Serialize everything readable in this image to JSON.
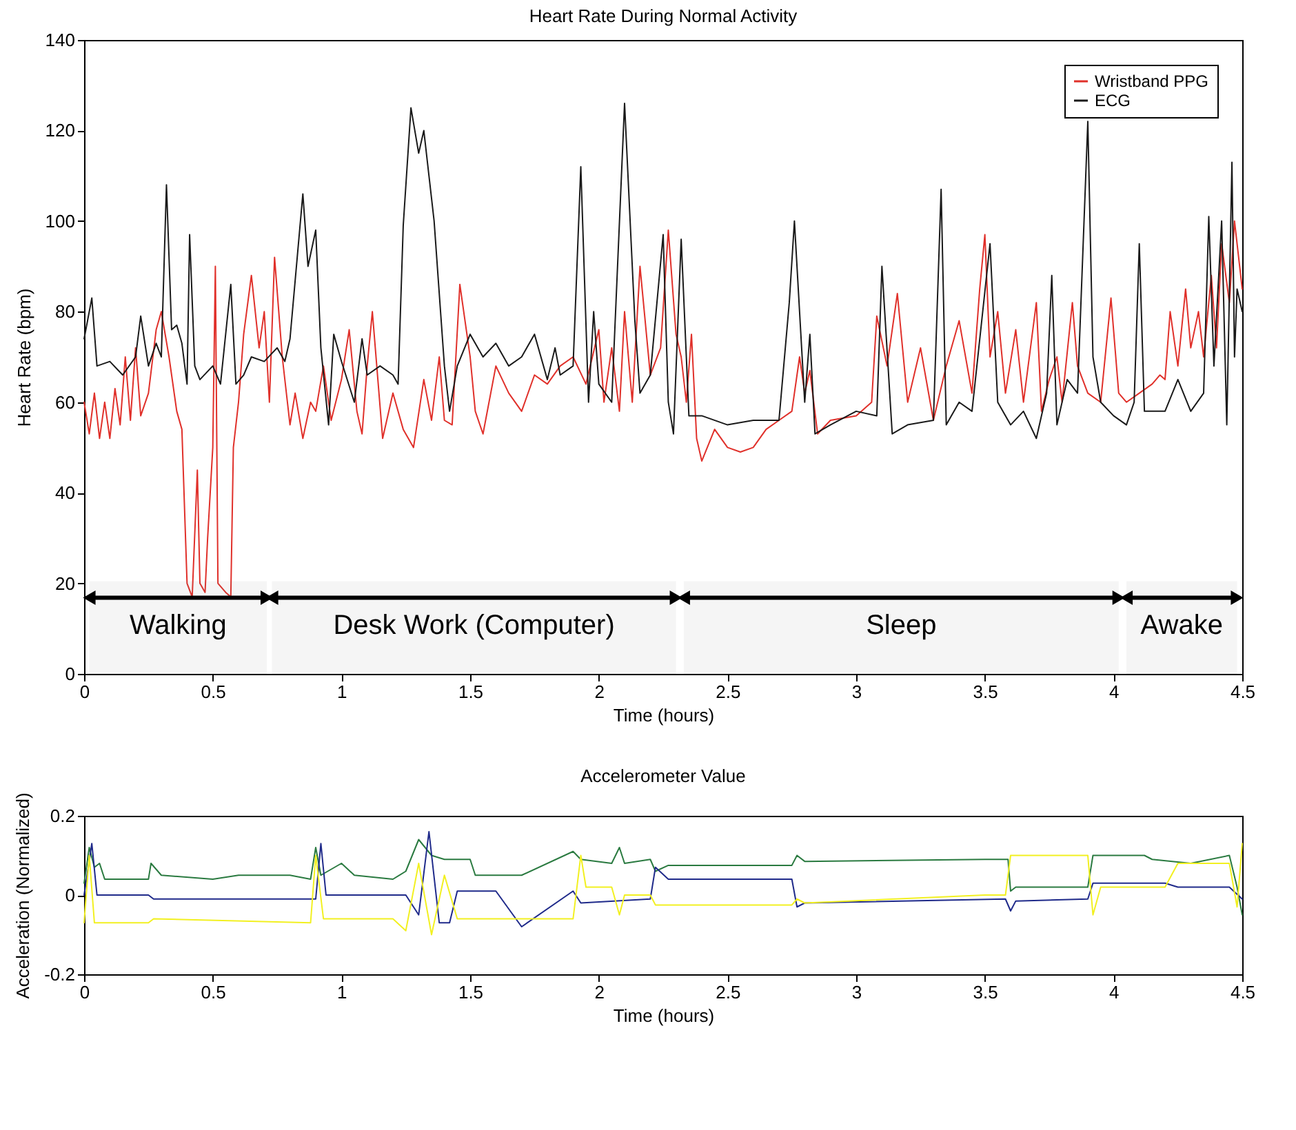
{
  "chart_data": [
    {
      "type": "line",
      "title": "Heart Rate During Normal Activity",
      "xlabel": "Time (hours)",
      "ylabel": "Heart Rate (bpm)",
      "xlim": [
        0,
        4.5
      ],
      "xticks": [
        0,
        0.5,
        1,
        1.5,
        2,
        2.5,
        3,
        3.5,
        4,
        4.5
      ],
      "ylim": [
        0,
        140
      ],
      "yticks": [
        0,
        20,
        40,
        60,
        80,
        100,
        120,
        140
      ],
      "legend": "top right",
      "bands": [
        {
          "axis": "x",
          "from": 0.02,
          "to": 0.71,
          "label": "Walking"
        },
        {
          "axis": "x",
          "from": 0.73,
          "to": 2.3,
          "label": "Desk Work (Computer)"
        },
        {
          "axis": "x",
          "from": 2.33,
          "to": 4.02,
          "label": "Sleep"
        },
        {
          "axis": "x",
          "from": 4.05,
          "to": 4.48,
          "label": "Awake"
        }
      ],
      "series": [
        {
          "name": "Wristband PPG",
          "color": "#e0302a",
          "x": [
            0,
            0.02,
            0.04,
            0.06,
            0.08,
            0.1,
            0.12,
            0.14,
            0.16,
            0.18,
            0.2,
            0.22,
            0.25,
            0.28,
            0.3,
            0.33,
            0.36,
            0.38,
            0.4,
            0.42,
            0.44,
            0.45,
            0.47,
            0.48,
            0.5,
            0.51,
            0.52,
            0.55,
            0.57,
            0.58,
            0.6,
            0.62,
            0.65,
            0.68,
            0.7,
            0.72,
            0.74,
            0.77,
            0.8,
            0.82,
            0.85,
            0.88,
            0.9,
            0.93,
            0.96,
            1.0,
            1.03,
            1.06,
            1.08,
            1.1,
            1.12,
            1.16,
            1.2,
            1.24,
            1.28,
            1.32,
            1.35,
            1.38,
            1.4,
            1.43,
            1.46,
            1.5,
            1.52,
            1.55,
            1.6,
            1.65,
            1.7,
            1.75,
            1.8,
            1.85,
            1.9,
            1.95,
            2.0,
            2.02,
            2.05,
            2.08,
            2.1,
            2.13,
            2.16,
            2.2,
            2.24,
            2.27,
            2.3,
            2.32,
            2.34,
            2.36,
            2.38,
            2.4,
            2.45,
            2.5,
            2.55,
            2.6,
            2.65,
            2.7,
            2.75,
            2.78,
            2.8,
            2.82,
            2.85,
            2.9,
            3.0,
            3.06,
            3.08,
            3.12,
            3.16,
            3.2,
            3.25,
            3.3,
            3.35,
            3.4,
            3.45,
            3.48,
            3.5,
            3.52,
            3.55,
            3.58,
            3.62,
            3.65,
            3.7,
            3.72,
            3.75,
            3.78,
            3.8,
            3.84,
            3.86,
            3.9,
            3.95,
            3.99,
            4.02,
            4.05,
            4.1,
            4.15,
            4.18,
            4.2,
            4.22,
            4.25,
            4.28,
            4.3,
            4.33,
            4.35,
            4.38,
            4.4,
            4.42,
            4.45,
            4.47,
            4.5
          ],
          "values": [
            60,
            53,
            62,
            52,
            60,
            52,
            63,
            55,
            70,
            56,
            72,
            57,
            62,
            76,
            80,
            70,
            58,
            54,
            20,
            17,
            45,
            20,
            18,
            30,
            50,
            90,
            20,
            18,
            17,
            50,
            60,
            75,
            88,
            72,
            80,
            60,
            92,
            70,
            55,
            62,
            52,
            60,
            58,
            68,
            56,
            65,
            76,
            58,
            53,
            68,
            80,
            52,
            62,
            54,
            50,
            65,
            56,
            70,
            56,
            55,
            86,
            70,
            58,
            53,
            68,
            62,
            58,
            66,
            64,
            68,
            70,
            64,
            76,
            60,
            72,
            58,
            80,
            60,
            90,
            66,
            72,
            98,
            75,
            70,
            60,
            75,
            52,
            47,
            54,
            50,
            49,
            50,
            54,
            56,
            58,
            70,
            62,
            67,
            53,
            56,
            57,
            60,
            79,
            68,
            84,
            60,
            72,
            56,
            68,
            78,
            62,
            85,
            97,
            70,
            80,
            62,
            76,
            60,
            82,
            58,
            65,
            70,
            60,
            82,
            68,
            62,
            60,
            83,
            62,
            60,
            62,
            64,
            66,
            65,
            80,
            68,
            85,
            72,
            80,
            70,
            88,
            72,
            95,
            82,
            100,
            85
          ]
        },
        {
          "name": "ECG",
          "color": "#1a1a1a",
          "x": [
            0,
            0.03,
            0.05,
            0.1,
            0.15,
            0.2,
            0.22,
            0.25,
            0.28,
            0.3,
            0.32,
            0.34,
            0.36,
            0.38,
            0.4,
            0.41,
            0.43,
            0.45,
            0.5,
            0.53,
            0.57,
            0.59,
            0.62,
            0.65,
            0.7,
            0.75,
            0.78,
            0.8,
            0.85,
            0.87,
            0.9,
            0.92,
            0.95,
            0.97,
            1.0,
            1.05,
            1.08,
            1.1,
            1.15,
            1.2,
            1.22,
            1.24,
            1.27,
            1.3,
            1.32,
            1.34,
            1.36,
            1.4,
            1.42,
            1.45,
            1.5,
            1.55,
            1.6,
            1.65,
            1.7,
            1.75,
            1.8,
            1.83,
            1.85,
            1.9,
            1.93,
            1.96,
            1.98,
            2.0,
            2.05,
            2.1,
            2.14,
            2.16,
            2.2,
            2.25,
            2.27,
            2.29,
            2.32,
            2.35,
            2.4,
            2.5,
            2.6,
            2.7,
            2.74,
            2.76,
            2.8,
            2.82,
            2.84,
            2.9,
            3.0,
            3.08,
            3.1,
            3.14,
            3.2,
            3.3,
            3.33,
            3.35,
            3.4,
            3.45,
            3.52,
            3.55,
            3.6,
            3.65,
            3.7,
            3.74,
            3.76,
            3.78,
            3.82,
            3.86,
            3.9,
            3.92,
            3.95,
            4.0,
            4.05,
            4.08,
            4.1,
            4.12,
            4.2,
            4.25,
            4.3,
            4.35,
            4.37,
            4.39,
            4.42,
            4.44,
            4.46,
            4.47,
            4.48,
            4.5
          ],
          "values": [
            74,
            83,
            68,
            69,
            66,
            70,
            79,
            68,
            73,
            70,
            108,
            76,
            77,
            73,
            64,
            97,
            68,
            65,
            68,
            64,
            86,
            64,
            66,
            70,
            69,
            72,
            69,
            74,
            106,
            90,
            98,
            72,
            55,
            75,
            69,
            60,
            74,
            66,
            68,
            66,
            64,
            99,
            125,
            115,
            120,
            110,
            100,
            68,
            58,
            68,
            75,
            70,
            73,
            68,
            70,
            75,
            65,
            72,
            66,
            68,
            112,
            60,
            80,
            64,
            60,
            126,
            78,
            62,
            66,
            97,
            60,
            53,
            96,
            57,
            57,
            55,
            56,
            56,
            82,
            100,
            60,
            75,
            53,
            55,
            58,
            57,
            90,
            53,
            55,
            56,
            107,
            55,
            60,
            58,
            95,
            60,
            55,
            58,
            52,
            62,
            88,
            55,
            65,
            62,
            122,
            70,
            60,
            57,
            55,
            60,
            95,
            58,
            58,
            65,
            58,
            62,
            101,
            68,
            100,
            55,
            113,
            70,
            85,
            80
          ]
        }
      ]
    },
    {
      "type": "line",
      "title": "Accelerometer Value",
      "xlabel": "Time (hours)",
      "ylabel": "Acceleration (Normalized)",
      "xlim": [
        0,
        4.5
      ],
      "xticks": [
        0,
        0.5,
        1,
        1.5,
        2,
        2.5,
        3,
        3.5,
        4,
        4.5
      ],
      "ylim": [
        -0.2,
        0.2
      ],
      "yticks": [
        -0.2,
        0,
        0.2
      ],
      "series": [
        {
          "color": "#2a7a40",
          "x": [
            0,
            0.02,
            0.04,
            0.06,
            0.08,
            0.25,
            0.26,
            0.3,
            0.5,
            0.6,
            0.8,
            0.88,
            0.9,
            0.92,
            1.0,
            1.05,
            1.2,
            1.25,
            1.3,
            1.35,
            1.4,
            1.5,
            1.52,
            1.7,
            1.9,
            1.93,
            2.05,
            2.08,
            2.1,
            2.2,
            2.22,
            2.27,
            2.75,
            2.77,
            2.8,
            3.5,
            3.59,
            3.6,
            3.62,
            3.9,
            3.92,
            4.12,
            4.15,
            4.3,
            4.45,
            4.48,
            4.5
          ],
          "values": [
            0.03,
            0.12,
            0.07,
            0.08,
            0.04,
            0.04,
            0.08,
            0.05,
            0.04,
            0.05,
            0.05,
            0.04,
            0.12,
            0.05,
            0.08,
            0.05,
            0.04,
            0.06,
            0.14,
            0.1,
            0.09,
            0.09,
            0.05,
            0.05,
            0.11,
            0.09,
            0.08,
            0.12,
            0.08,
            0.09,
            0.06,
            0.075,
            0.075,
            0.1,
            0.085,
            0.09,
            0.09,
            0.01,
            0.02,
            0.02,
            0.1,
            0.1,
            0.09,
            0.08,
            0.1,
            0.02,
            -0.05
          ]
        },
        {
          "color": "#1f2a8a",
          "x": [
            0,
            0.03,
            0.05,
            0.25,
            0.27,
            0.9,
            0.92,
            0.94,
            1.25,
            1.3,
            1.34,
            1.38,
            1.42,
            1.45,
            1.6,
            1.7,
            1.9,
            1.93,
            2.2,
            2.22,
            2.27,
            2.75,
            2.77,
            2.8,
            3.58,
            3.6,
            3.62,
            3.9,
            3.92,
            4.2,
            4.25,
            4.45,
            4.5
          ],
          "values": [
            0.0,
            0.13,
            0.0,
            0.0,
            -0.01,
            -0.01,
            0.13,
            0.0,
            0.0,
            -0.05,
            0.16,
            -0.07,
            -0.07,
            0.01,
            0.01,
            -0.08,
            0.01,
            -0.02,
            -0.01,
            0.07,
            0.04,
            0.04,
            -0.03,
            -0.02,
            -0.01,
            -0.04,
            -0.015,
            -0.01,
            0.03,
            0.03,
            0.02,
            0.02,
            -0.01
          ]
        },
        {
          "color": "#f2f020",
          "x": [
            0,
            0.02,
            0.04,
            0.25,
            0.27,
            0.88,
            0.9,
            0.93,
            1.2,
            1.25,
            1.3,
            1.35,
            1.4,
            1.45,
            1.9,
            1.93,
            1.95,
            2.05,
            2.08,
            2.1,
            2.2,
            2.22,
            2.75,
            2.77,
            2.8,
            3.5,
            3.58,
            3.6,
            3.9,
            3.92,
            3.95,
            4.2,
            4.25,
            4.45,
            4.48,
            4.5
          ],
          "values": [
            -0.07,
            0.1,
            -0.07,
            -0.07,
            -0.06,
            -0.07,
            0.1,
            -0.06,
            -0.06,
            -0.09,
            0.08,
            -0.1,
            0.05,
            -0.06,
            -0.06,
            0.1,
            0.02,
            0.02,
            -0.05,
            0.0,
            0.0,
            -0.025,
            -0.025,
            -0.01,
            -0.02,
            0.0,
            0.0,
            0.1,
            0.1,
            -0.05,
            0.02,
            0.02,
            0.08,
            0.08,
            -0.03,
            0.13
          ]
        }
      ]
    }
  ]
}
